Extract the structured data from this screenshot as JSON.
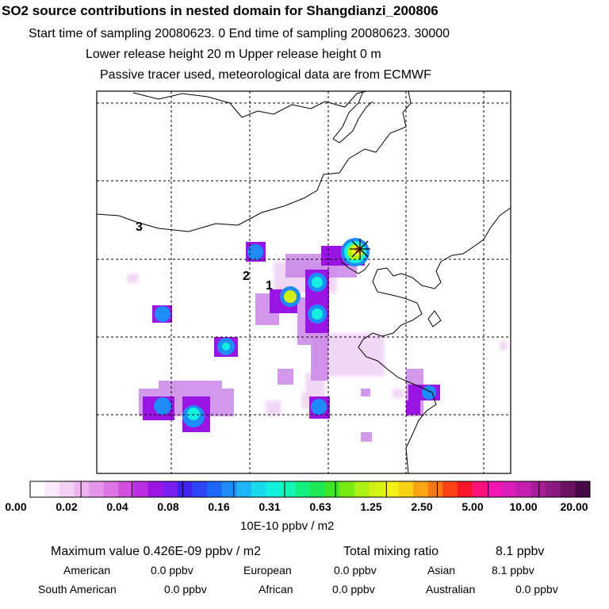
{
  "header": {
    "title": "SO2 source contributions in nested domain for Shangdianzi_200806",
    "line2": "Start time of sampling 20080623.     0     End time of sampling 20080623. 30000",
    "line3": "Lower release height   20 m          Upper release height    0 m",
    "line4": "Passive tracer used, meteorological data are from ECMWF"
  },
  "map": {
    "receptor_marker": "asterisk-icon",
    "region_labels": [
      "3",
      "2",
      "1"
    ]
  },
  "colorbar": {
    "tick_labels": [
      "0.00",
      "0.02",
      "0.04",
      "0.08",
      "0.16",
      "0.31",
      "0.63",
      "1.25",
      "2.50",
      "5.00",
      "10.00",
      "20.00"
    ],
    "colors": [
      "#ffffff",
      "#fbe8fb",
      "#f5d0f5",
      "#eeb4f0",
      "#e596ea",
      "#dd76e4",
      "#cf50de",
      "#bd2de0",
      "#9a14e4",
      "#7a1ef0",
      "#3c23f0",
      "#2d44f5",
      "#1e66f8",
      "#1e8cf8",
      "#1eb4f5",
      "#19d9ef",
      "#14f0e0",
      "#14f5b4",
      "#14f080",
      "#19e650",
      "#41e628",
      "#78eb14",
      "#aaf014",
      "#d2f014",
      "#f0f014",
      "#fad214",
      "#faa514",
      "#fa7814",
      "#fa4114",
      "#fa1428",
      "#fa1478",
      "#f514b4",
      "#dc1eb9",
      "#c31eae",
      "#a81e98",
      "#8a1a80",
      "#6a1262",
      "#4a0a48"
    ],
    "unit": "10E-10 ppbv / m2"
  },
  "stats": {
    "max_label": "Maximum value  0.426E-09 ppbv / m2",
    "total_label": "Total mixing ratio",
    "total_value": "8.1 ppbv",
    "row1": [
      {
        "label": "American",
        "value": "0.0 ppbv"
      },
      {
        "label": "European",
        "value": "0.0 ppbv"
      },
      {
        "label": "Asian",
        "value": "8.1 ppbv"
      }
    ],
    "row2": [
      {
        "label": "South American",
        "value": "0.0 ppbv"
      },
      {
        "label": "African",
        "value": "0.0 ppbv"
      },
      {
        "label": "Australian",
        "value": "0.0 ppbv"
      }
    ]
  }
}
